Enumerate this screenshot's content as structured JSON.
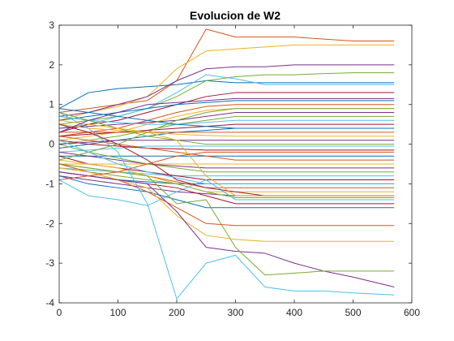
{
  "chart_data": {
    "type": "line",
    "title": "Evolucion de W2",
    "xlabel": "",
    "ylabel": "",
    "xlim": [
      0,
      600
    ],
    "ylim": [
      -4,
      3
    ],
    "xticks": [
      0,
      100,
      200,
      300,
      400,
      500,
      600
    ],
    "yticks": [
      -4,
      -3,
      -2,
      -1,
      0,
      1,
      2,
      3
    ],
    "grid": false,
    "box": true,
    "colors": [
      "#0072BD",
      "#D95319",
      "#EDB120",
      "#7E2F8E",
      "#77AC30",
      "#4DBEEE",
      "#A2142F"
    ],
    "x": [
      0,
      50,
      100,
      150,
      200,
      250,
      300,
      350,
      400,
      450,
      500,
      570
    ],
    "series": [
      {
        "values": [
          0.9,
          1.3,
          1.4,
          1.45,
          1.5,
          1.6,
          1.55,
          1.55,
          1.55,
          1.55,
          1.55,
          1.55
        ]
      },
      {
        "values": [
          0.8,
          0.9,
          1.0,
          1.1,
          1.6,
          2.9,
          2.7,
          2.7,
          2.7,
          2.65,
          2.6,
          2.6
        ]
      },
      {
        "values": [
          0.6,
          0.8,
          0.95,
          1.2,
          1.9,
          2.35,
          2.4,
          2.45,
          2.5,
          2.5,
          2.5,
          2.5
        ]
      },
      {
        "values": [
          0.7,
          0.8,
          1.0,
          1.2,
          1.6,
          1.9,
          1.95,
          1.95,
          2.0,
          2.0,
          2.0,
          2.0
        ]
      },
      {
        "values": [
          0.5,
          0.6,
          0.7,
          0.9,
          1.2,
          1.6,
          1.7,
          1.75,
          1.75,
          1.78,
          1.8,
          1.8
        ]
      },
      {
        "values": [
          0.4,
          0.5,
          0.7,
          0.9,
          1.3,
          1.75,
          1.65,
          1.5,
          1.5,
          1.5,
          1.5,
          1.5
        ]
      },
      {
        "values": [
          0.3,
          0.5,
          0.6,
          0.8,
          1.0,
          1.2,
          1.3,
          1.3,
          1.3,
          1.3,
          1.3,
          1.3
        ]
      },
      {
        "values": [
          0.6,
          0.7,
          0.8,
          0.9,
          1.0,
          1.05,
          1.1,
          1.1,
          1.1,
          1.1,
          1.1,
          1.1
        ]
      },
      {
        "values": [
          0.2,
          0.3,
          0.4,
          0.6,
          0.8,
          0.95,
          1.0,
          1.0,
          1.0,
          1.0,
          1.0,
          1.0
        ]
      },
      {
        "values": [
          0.1,
          0.2,
          0.3,
          0.5,
          0.7,
          0.85,
          0.9,
          0.9,
          0.9,
          0.9,
          0.9,
          0.9
        ]
      },
      {
        "values": [
          0.4,
          0.45,
          0.5,
          0.55,
          0.6,
          0.7,
          0.8,
          0.8,
          0.8,
          0.8,
          0.8,
          0.8
        ]
      },
      {
        "values": [
          0.0,
          0.1,
          0.2,
          0.35,
          0.5,
          0.6,
          0.7,
          0.7,
          0.7,
          0.7,
          0.7,
          0.7
        ]
      },
      {
        "values": [
          0.7,
          0.6,
          0.55,
          0.5,
          0.5,
          0.55,
          0.6,
          0.6,
          0.6,
          0.6,
          0.6,
          0.6
        ]
      },
      {
        "values": [
          0.2,
          0.25,
          0.3,
          0.35,
          0.4,
          0.45,
          0.5,
          0.5,
          0.5,
          0.5,
          0.5,
          0.5
        ]
      },
      {
        "values": [
          -0.1,
          0.0,
          0.1,
          0.2,
          0.3,
          0.35,
          0.4,
          0.4,
          0.4,
          0.4,
          0.4,
          0.4
        ]
      },
      {
        "values": [
          0.3,
          0.3,
          0.3,
          0.3,
          0.3,
          0.3,
          0.3,
          0.3,
          0.3,
          0.3,
          0.3,
          0.3
        ]
      },
      {
        "values": [
          0.5,
          0.4,
          0.35,
          0.3,
          0.25,
          0.22,
          0.2,
          0.2,
          0.2,
          0.2,
          0.2,
          0.2
        ]
      },
      {
        "values": [
          0.0,
          0.05,
          0.1,
          0.1,
          0.1,
          0.1,
          0.1,
          0.1,
          0.1,
          0.1,
          0.1,
          0.1
        ]
      },
      {
        "values": [
          0.8,
          0.6,
          0.4,
          0.2,
          0.1,
          0.0,
          0.0,
          0.0,
          0.0,
          0.0,
          0.0,
          0.0
        ]
      },
      {
        "values": [
          -0.2,
          -0.15,
          -0.1,
          -0.05,
          -0.05,
          -0.05,
          -0.05,
          -0.05,
          -0.05,
          -0.05,
          -0.05,
          -0.05
        ]
      },
      {
        "values": [
          0.1,
          0.0,
          -0.05,
          -0.1,
          -0.12,
          -0.15,
          -0.15,
          -0.15,
          -0.15,
          -0.15,
          -0.15,
          -0.15
        ]
      },
      {
        "values": [
          -0.3,
          -0.3,
          -0.3,
          -0.3,
          -0.3,
          -0.3,
          -0.3,
          -0.3,
          -0.3,
          -0.3,
          -0.3,
          -0.3
        ]
      },
      {
        "values": [
          0.2,
          0.1,
          0.0,
          -0.1,
          -0.2,
          -0.3,
          -0.4,
          -0.4,
          -0.4,
          -0.4,
          -0.4,
          -0.4
        ]
      },
      {
        "values": [
          -0.5,
          -0.5,
          -0.5,
          -0.5,
          -0.5,
          -0.5,
          -0.5,
          -0.5,
          -0.5,
          -0.5,
          -0.5,
          -0.5
        ]
      },
      {
        "values": [
          -0.2,
          -0.3,
          -0.4,
          -0.5,
          -0.55,
          -0.6,
          -0.6,
          -0.6,
          -0.6,
          -0.6,
          -0.6,
          -0.6
        ]
      },
      {
        "values": [
          0.0,
          -0.2,
          -0.35,
          -0.5,
          -0.6,
          -0.7,
          -0.7,
          -0.7,
          -0.7,
          -0.7,
          -0.7,
          -0.7
        ]
      },
      {
        "values": [
          -0.6,
          -0.65,
          -0.7,
          -0.75,
          -0.8,
          -0.8,
          -0.8,
          -0.8,
          -0.8,
          -0.8,
          -0.8,
          -0.8
        ]
      },
      {
        "values": [
          -0.3,
          -0.5,
          -0.6,
          -0.7,
          -0.8,
          -0.9,
          -0.9,
          -0.9,
          -0.9,
          -0.9,
          -0.9,
          -0.9
        ]
      },
      {
        "values": [
          -0.7,
          -0.8,
          -0.9,
          -0.95,
          -1.0,
          -1.0,
          -1.0,
          -1.0,
          -1.0,
          -1.0,
          -1.0,
          -1.0
        ]
      },
      {
        "values": [
          -0.5,
          -0.6,
          -0.7,
          -0.8,
          -0.95,
          -1.1,
          -1.1,
          -1.1,
          -1.1,
          -1.1,
          -1.1,
          -1.1
        ]
      },
      {
        "values": [
          -0.4,
          -0.5,
          -0.6,
          -0.8,
          -1.0,
          -1.2,
          -1.2,
          -1.2,
          -1.2,
          -1.2,
          -1.2,
          -1.2
        ]
      },
      {
        "values": [
          -0.8,
          -0.9,
          -1.0,
          -1.1,
          -1.2,
          -1.25,
          -1.3,
          -1.3,
          -1.3,
          -1.3,
          -1.3,
          -1.3
        ]
      },
      {
        "values": [
          -0.6,
          -0.7,
          -0.8,
          -0.9,
          -1.0,
          -1.2,
          -1.35,
          -1.35,
          -1.35,
          -1.35,
          -1.35,
          -1.35
        ]
      },
      {
        "values": [
          -0.9,
          -1.3,
          -1.4,
          -1.55,
          -1.2,
          -0.9,
          -1.4,
          -1.4,
          -1.4,
          -1.4,
          -1.4,
          -1.4
        ]
      },
      {
        "values": [
          -0.7,
          -0.8,
          -0.9,
          -1.0,
          -1.1,
          -1.3,
          -1.5,
          -1.5,
          -1.5,
          -1.5,
          -1.5,
          -1.5
        ]
      },
      {
        "values": [
          -0.8,
          -1.0,
          -1.1,
          -1.2,
          -1.4,
          -1.6,
          -1.6,
          -1.6,
          -1.6,
          -1.6,
          -1.6,
          -1.6
        ]
      },
      {
        "values": [
          -0.5,
          -0.7,
          -0.9,
          -1.2,
          -1.6,
          -2.0,
          -2.05,
          -2.05,
          -2.05,
          -2.05,
          -2.05,
          -2.05
        ]
      },
      {
        "values": [
          -0.6,
          -0.7,
          -0.9,
          -1.1,
          -1.8,
          -2.3,
          -2.4,
          -2.45,
          -2.45,
          -2.45,
          -2.45,
          -2.45
        ]
      },
      {
        "values": [
          -0.7,
          -0.8,
          -0.9,
          -1.0,
          -1.7,
          -2.6,
          -2.7,
          -2.75,
          -3.0,
          -3.2,
          -3.35,
          -3.6
        ]
      },
      {
        "values": [
          -0.5,
          -0.6,
          -0.7,
          -0.8,
          -1.5,
          -1.4,
          -2.6,
          -3.3,
          -3.25,
          -3.2,
          -3.2,
          -3.2
        ]
      },
      {
        "values": [
          0.8,
          0.4,
          -0.2,
          -1.5,
          -3.9,
          -3.0,
          -2.8,
          -3.6,
          -3.7,
          -3.7,
          -3.75,
          -3.8
        ]
      },
      {
        "values": [
          0.5,
          0.3,
          0.0,
          -0.4,
          -0.9,
          -1.1,
          -1.2,
          -1.3,
          -1.3,
          -1.3,
          -1.3,
          -1.3
        ]
      },
      {
        "values": [
          0.9,
          0.8,
          0.7,
          0.6,
          0.5,
          0.45,
          0.4,
          0.4,
          0.4,
          0.4,
          0.4,
          0.4
        ]
      },
      {
        "values": [
          -0.9,
          -0.8,
          -0.7,
          -0.5,
          -0.3,
          -0.2,
          -0.2,
          -0.2,
          -0.2,
          -0.2,
          -0.2,
          -0.2
        ]
      },
      {
        "values": [
          0.6,
          0.5,
          0.4,
          0.3,
          0.1,
          -0.8,
          -1.3,
          -1.3,
          -1.3,
          -1.3,
          -1.3,
          -1.3
        ]
      },
      {
        "values": [
          0.3,
          0.6,
          0.8,
          1.0,
          1.05,
          1.1,
          1.15,
          1.15,
          1.15,
          1.15,
          1.15,
          1.15
        ]
      },
      {
        "values": [
          -0.4,
          -0.2,
          0.0,
          0.3,
          0.6,
          0.8,
          0.9,
          0.9,
          0.9,
          0.9,
          0.9,
          0.9
        ]
      },
      {
        "values": [
          0.1,
          -0.2,
          -0.5,
          -0.7,
          -0.85,
          -1.0,
          -1.0,
          -1.0,
          -1.0,
          -1.0,
          -1.0,
          -1.0
        ]
      }
    ]
  }
}
